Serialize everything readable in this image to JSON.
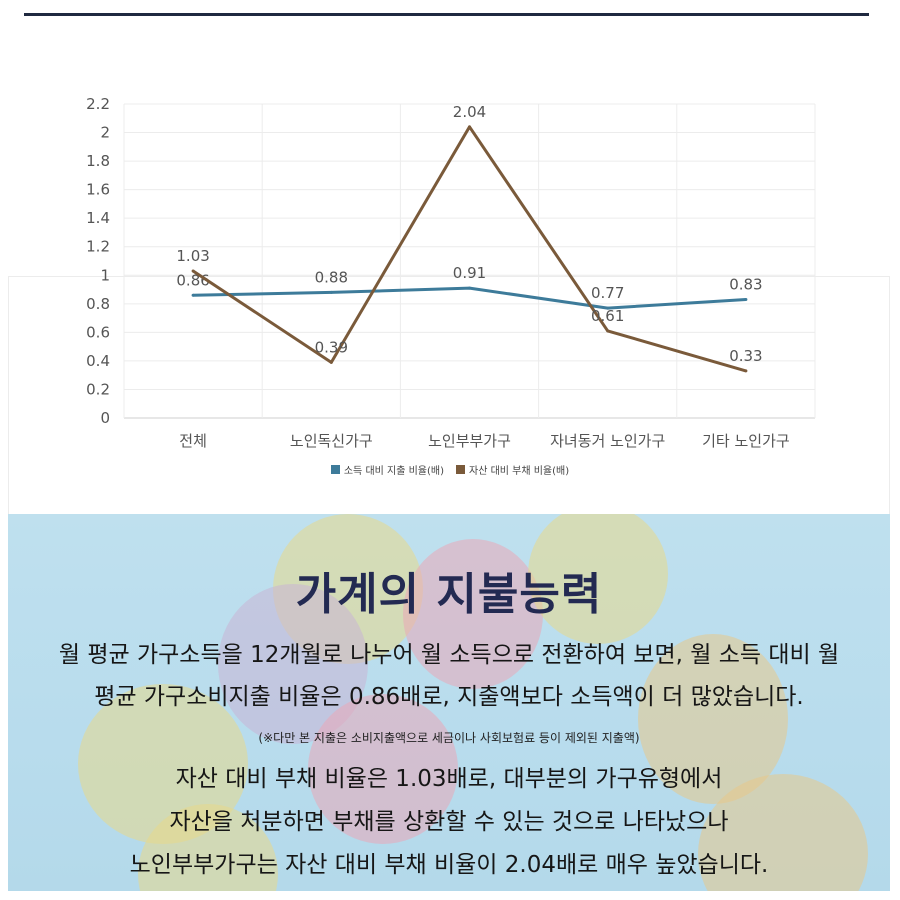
{
  "chart_data": {
    "type": "line",
    "categories": [
      "전체",
      "노인독신가구",
      "노인부부가구",
      "자녀동거 노인가구",
      "기타 노인가구"
    ],
    "series": [
      {
        "name": "소득 대비 지출 비율(배)",
        "values": [
          0.86,
          0.88,
          0.91,
          0.77,
          0.83
        ],
        "color": "#3d7b9a"
      },
      {
        "name": "자산 대비 부채 비율(배)",
        "values": [
          1.03,
          0.39,
          2.04,
          0.61,
          0.33
        ],
        "color": "#7a5a3a"
      }
    ],
    "data_labels": {
      "s0": [
        "0.86",
        "0.88",
        "0.91",
        "0.77",
        "0.83"
      ],
      "s1": [
        "1.03",
        "0.39",
        "2.04",
        "0.61",
        "0.33"
      ]
    },
    "yticks": [
      "0",
      "0.2",
      "0.4",
      "0.6",
      "0.8",
      "1",
      "1.2",
      "1.4",
      "1.6",
      "1.8",
      "2",
      "2.2"
    ],
    "ylim": [
      0,
      2.2
    ],
    "grid": true,
    "legend": "bottom-center"
  },
  "info": {
    "headline": "가계의 지불능력",
    "para1_line1": "월 평균 가구소득을 12개월로 나누어 월 소득으로 전환하여 보면, 월 소득 대비 월",
    "para1_line2": "평균 가구소비지출 비율은 0.86배로, 지출액보다 소득액이 더 많았습니다.",
    "note": "(※다만 본 지출은 소비지출액으로 세금이나 사회보험료 등이 제외된 지출액)",
    "para2_line1": "자산 대비 부채 비율은 1.03배로, 대부분의 가구유형에서",
    "para2_line2": "자산을 처분하면 부채를 상환할 수 있는 것으로 나타났으나",
    "para2_line3": "노인부부가구는 자산 대비 부채 비율이 2.04배로 매우 높았습니다."
  }
}
